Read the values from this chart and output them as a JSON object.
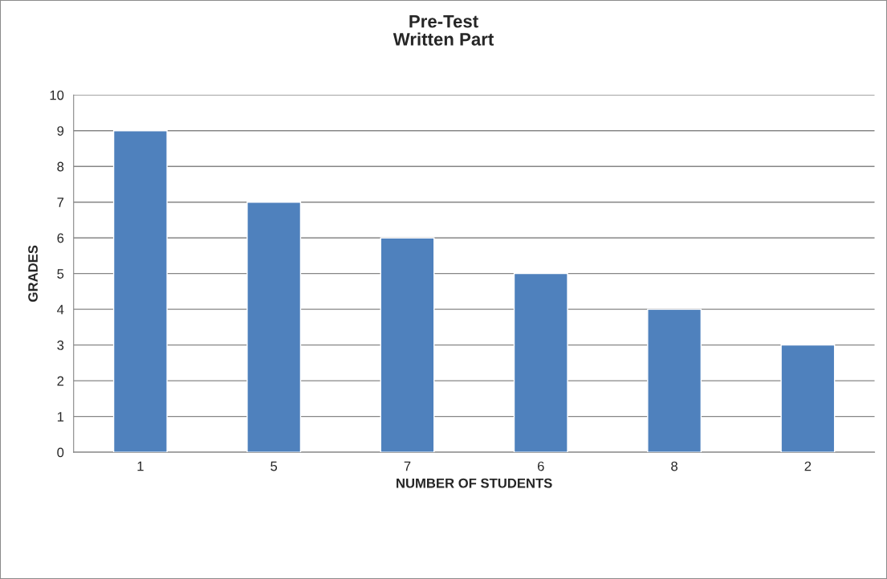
{
  "chart_data": {
    "type": "bar",
    "title": "Pre-Test\nWritten Part",
    "xlabel": "NUMBER OF STUDENTS",
    "ylabel": "GRADES",
    "categories": [
      "1",
      "5",
      "7",
      "6",
      "8",
      "2"
    ],
    "values": [
      9,
      7,
      6,
      5,
      4,
      3
    ],
    "color": "#4f81bd",
    "ylim": [
      0,
      10
    ],
    "yticks": [
      0,
      1,
      2,
      3,
      4,
      5,
      6,
      7,
      8,
      9,
      10
    ],
    "grid": "y",
    "legend": false
  }
}
